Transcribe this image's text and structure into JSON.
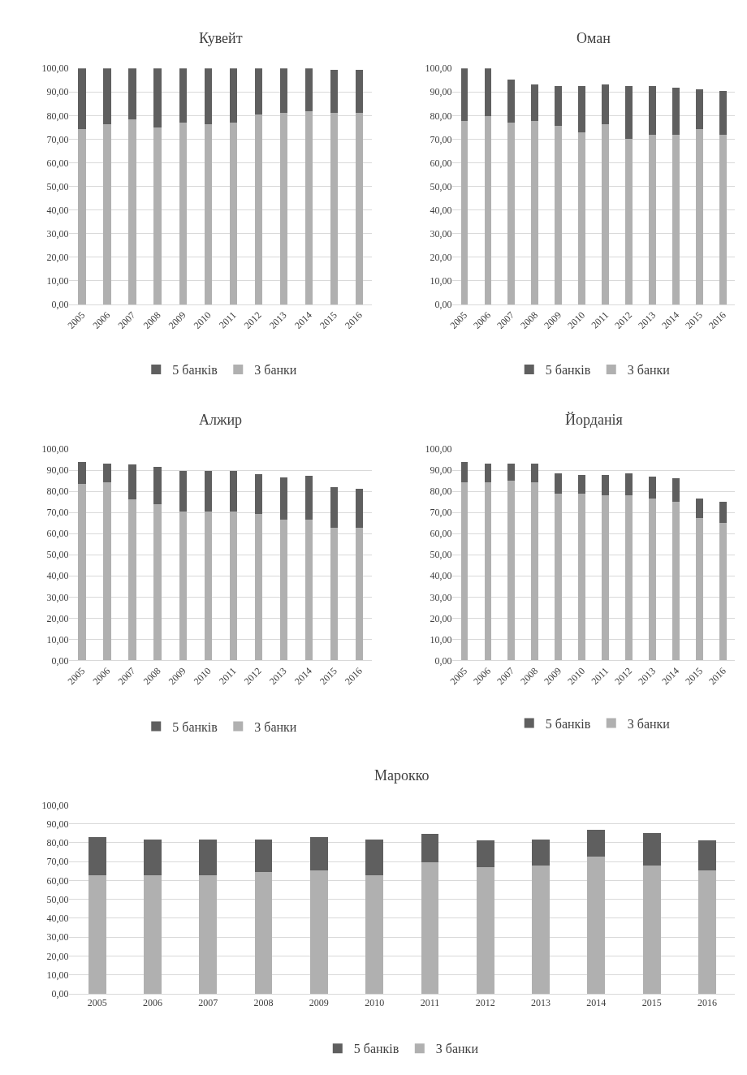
{
  "chart_data": [
    {
      "type": "bar",
      "stacked": true,
      "title": "Кувейт",
      "categories": [
        "2005",
        "2006",
        "2007",
        "2008",
        "2009",
        "2010",
        "2011",
        "2012",
        "2013",
        "2014",
        "2015",
        "2016"
      ],
      "ylim": [
        0,
        100
      ],
      "yticks": [
        {
          "value": 0,
          "label": "0,00"
        },
        {
          "value": 10,
          "label": "10,00"
        },
        {
          "value": 20,
          "label": "20,00"
        },
        {
          "value": 30,
          "label": "30,00"
        },
        {
          "value": 40,
          "label": "40,00"
        },
        {
          "value": 50,
          "label": "50,00"
        },
        {
          "value": 60,
          "label": "60,00"
        },
        {
          "value": 70,
          "label": "70,00"
        },
        {
          "value": 80,
          "label": "80,00"
        },
        {
          "value": 90,
          "label": "90,00"
        },
        {
          "value": 100,
          "label": "100,00"
        }
      ],
      "grid": "y",
      "legend": "bottom",
      "series": [
        {
          "name": "3 банки",
          "color": "#b0b0b0",
          "values": [
            74.4,
            76.4,
            78.3,
            75.0,
            77.0,
            76.4,
            77.0,
            80.5,
            81.0,
            81.7,
            81.0,
            81.0
          ]
        },
        {
          "name": "5 банків",
          "color": "#5f5f5f",
          "values": [
            25.6,
            23.6,
            21.7,
            25.0,
            23.0,
            23.6,
            23.0,
            19.5,
            19.0,
            18.3,
            18.4,
            18.4
          ]
        }
      ]
    },
    {
      "type": "bar",
      "stacked": true,
      "title": "Оман",
      "categories": [
        "2005",
        "2006",
        "2007",
        "2008",
        "2009",
        "2010",
        "2011",
        "2012",
        "2013",
        "2014",
        "2015",
        "2016"
      ],
      "ylim": [
        0,
        100
      ],
      "yticks": [
        {
          "value": 0,
          "label": "0,00"
        },
        {
          "value": 10,
          "label": "10,00"
        },
        {
          "value": 20,
          "label": "20,00"
        },
        {
          "value": 30,
          "label": "30,00"
        },
        {
          "value": 40,
          "label": "40,00"
        },
        {
          "value": 50,
          "label": "50,00"
        },
        {
          "value": 60,
          "label": "60,00"
        },
        {
          "value": 70,
          "label": "70,00"
        },
        {
          "value": 80,
          "label": "80,00"
        },
        {
          "value": 90,
          "label": "90,00"
        },
        {
          "value": 100,
          "label": "100,00"
        }
      ],
      "grid": "y",
      "legend": "bottom",
      "series": [
        {
          "name": "3 банки",
          "color": "#b0b0b0",
          "values": [
            77.8,
            79.8,
            77.0,
            77.8,
            75.8,
            73.0,
            76.3,
            70.3,
            71.8,
            71.8,
            74.3,
            71.8
          ]
        },
        {
          "name": "5 банків",
          "color": "#5f5f5f",
          "values": [
            22.2,
            20.2,
            18.3,
            15.5,
            16.7,
            19.5,
            17.0,
            22.2,
            20.7,
            20.0,
            16.7,
            18.7
          ]
        }
      ]
    },
    {
      "type": "bar",
      "stacked": true,
      "title": "Алжир",
      "categories": [
        "2005",
        "2006",
        "2007",
        "2008",
        "2009",
        "2010",
        "2011",
        "2012",
        "2013",
        "2014",
        "2015",
        "2016"
      ],
      "ylim": [
        0,
        100
      ],
      "yticks": [
        {
          "value": 0,
          "label": "0,00"
        },
        {
          "value": 10,
          "label": "10,00"
        },
        {
          "value": 20,
          "label": "20,00"
        },
        {
          "value": 30,
          "label": "30,00"
        },
        {
          "value": 40,
          "label": "40,00"
        },
        {
          "value": 50,
          "label": "50,00"
        },
        {
          "value": 60,
          "label": "60,00"
        },
        {
          "value": 70,
          "label": "70,00"
        },
        {
          "value": 80,
          "label": "80,00"
        },
        {
          "value": 90,
          "label": "90,00"
        },
        {
          "value": 100,
          "label": "100,00"
        }
      ],
      "grid": "y",
      "legend": "bottom",
      "series": [
        {
          "name": "3 банки",
          "color": "#b0b0b0",
          "values": [
            83.6,
            84.3,
            76.1,
            73.8,
            70.6,
            70.6,
            70.6,
            69.3,
            66.7,
            66.7,
            62.9,
            62.9
          ]
        },
        {
          "name": "5 банків",
          "color": "#5f5f5f",
          "values": [
            10.5,
            9.0,
            16.5,
            18.0,
            19.0,
            19.0,
            19.0,
            18.8,
            19.9,
            20.5,
            19.0,
            18.3
          ]
        }
      ]
    },
    {
      "type": "bar",
      "stacked": true,
      "title": "Йорданія",
      "categories": [
        "2005",
        "2006",
        "2007",
        "2008",
        "2009",
        "2010",
        "2011",
        "2012",
        "2013",
        "2014",
        "2015",
        "2016"
      ],
      "ylim": [
        0,
        100
      ],
      "yticks": [
        {
          "value": 0,
          "label": "0,00"
        },
        {
          "value": 10,
          "label": "10,00"
        },
        {
          "value": 20,
          "label": "20,00"
        },
        {
          "value": 30,
          "label": "30,00"
        },
        {
          "value": 40,
          "label": "40,00"
        },
        {
          "value": 50,
          "label": "50,00"
        },
        {
          "value": 60,
          "label": "60,00"
        },
        {
          "value": 70,
          "label": "70,00"
        },
        {
          "value": 80,
          "label": "80,00"
        },
        {
          "value": 90,
          "label": "90,00"
        },
        {
          "value": 100,
          "label": "100,00"
        }
      ],
      "grid": "y",
      "legend": "bottom",
      "series": [
        {
          "name": "3 банки",
          "color": "#b0b0b0",
          "values": [
            84.2,
            84.2,
            85.0,
            84.2,
            78.9,
            78.9,
            78.1,
            78.1,
            76.5,
            75.1,
            67.4,
            65.0
          ]
        },
        {
          "name": "5 банків",
          "color": "#5f5f5f",
          "values": [
            9.8,
            9.0,
            8.2,
            9.0,
            9.8,
            9.0,
            9.8,
            10.6,
            10.6,
            11.3,
            9.1,
            9.9
          ]
        }
      ]
    },
    {
      "type": "bar",
      "stacked": true,
      "title": "Марокко",
      "categories": [
        "2005",
        "2006",
        "2007",
        "2008",
        "2009",
        "2010",
        "2011",
        "2012",
        "2013",
        "2014",
        "2015",
        "2016"
      ],
      "ylim": [
        0,
        100
      ],
      "yticks": [
        {
          "value": 0,
          "label": "0,00"
        },
        {
          "value": 10,
          "label": "10,00"
        },
        {
          "value": 20,
          "label": "20,00"
        },
        {
          "value": 30,
          "label": "30,00"
        },
        {
          "value": 40,
          "label": "40,00"
        },
        {
          "value": 50,
          "label": "50,00"
        },
        {
          "value": 60,
          "label": "60,00"
        },
        {
          "value": 70,
          "label": "70,00"
        },
        {
          "value": 80,
          "label": "80,00"
        },
        {
          "value": 90,
          "label": "90,00"
        },
        {
          "value": 100,
          "label": "100,00"
        }
      ],
      "grid": "y",
      "legend": "bottom",
      "series": [
        {
          "name": "3 банки",
          "color": "#b0b0b0",
          "values": [
            63.0,
            63.0,
            63.0,
            64.7,
            65.4,
            63.0,
            69.6,
            67.2,
            67.9,
            72.8,
            67.9,
            65.4
          ]
        },
        {
          "name": "5 банків",
          "color": "#5f5f5f",
          "values": [
            19.8,
            18.9,
            18.9,
            17.2,
            17.4,
            18.9,
            15.0,
            13.9,
            14.0,
            14.2,
            17.4,
            15.7
          ]
        }
      ]
    }
  ]
}
